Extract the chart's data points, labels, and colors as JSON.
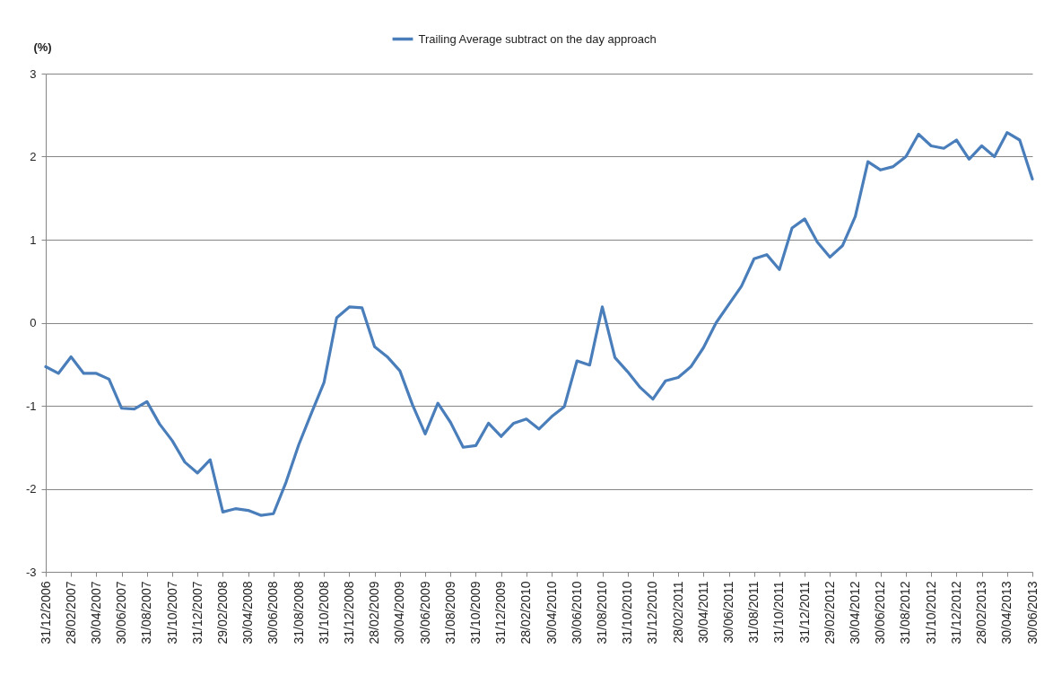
{
  "chart_data": {
    "type": "line",
    "ylabel": "(%)",
    "categories": [
      "31/12/2006",
      null,
      "28/02/2007",
      null,
      "30/04/2007",
      null,
      "30/06/2007",
      null,
      "31/08/2007",
      null,
      "31/10/2007",
      null,
      "31/12/2007",
      null,
      "29/02/2008",
      null,
      "30/04/2008",
      null,
      "30/06/2008",
      null,
      "31/08/2008",
      null,
      "31/10/2008",
      null,
      "31/12/2008",
      null,
      "28/02/2009",
      null,
      "30/04/2009",
      null,
      "30/06/2009",
      null,
      "31/08/2009",
      null,
      "31/10/2009",
      null,
      "31/12/2009",
      null,
      "28/02/2010",
      null,
      "30/04/2010",
      null,
      "30/06/2010",
      null,
      "31/08/2010",
      null,
      "31/10/2010",
      null,
      "31/12/2010",
      null,
      "28/02/2011",
      null,
      "30/04/2011",
      null,
      "30/06/2011",
      null,
      "31/08/2011",
      null,
      "31/10/2011",
      null,
      "31/12/2011",
      null,
      "29/02/2012",
      null,
      "30/04/2012",
      null,
      "30/06/2012",
      null,
      "31/08/2012",
      null,
      "31/10/2012",
      null,
      "31/12/2012",
      null,
      "28/02/2013",
      null,
      "30/04/2013",
      null,
      "30/06/2013"
    ],
    "series": [
      {
        "name": "Trailing Average subtract on the day approach",
        "color": "#4a7ebb",
        "values": [
          -0.53,
          -0.61,
          -0.41,
          -0.61,
          -0.61,
          -0.68,
          -1.03,
          -1.04,
          -0.95,
          -1.22,
          -1.42,
          -1.68,
          -1.81,
          -1.65,
          -2.28,
          -2.24,
          -2.26,
          -2.32,
          -2.3,
          -1.92,
          -1.47,
          -1.09,
          -0.72,
          0.06,
          0.19,
          0.18,
          -0.29,
          -0.41,
          -0.58,
          -0.99,
          -1.34,
          -0.97,
          -1.2,
          -1.5,
          -1.48,
          -1.21,
          -1.37,
          -1.21,
          -1.16,
          -1.28,
          -1.13,
          -1.01,
          -0.46,
          -0.51,
          0.19,
          -0.42,
          -0.59,
          -0.78,
          -0.92,
          -0.7,
          -0.66,
          -0.53,
          -0.3,
          0.0,
          0.22,
          0.44,
          0.77,
          0.82,
          0.64,
          1.14,
          1.25,
          0.97,
          0.79,
          0.93,
          1.28,
          1.94,
          1.84,
          1.88,
          2.0,
          2.27,
          2.13,
          2.1,
          2.2,
          1.97,
          2.13,
          2.0,
          2.29,
          2.2,
          1.73
        ]
      }
    ],
    "ylim": [
      -3,
      3
    ],
    "yticks": [
      -3,
      -2,
      -1,
      0,
      1,
      2,
      3
    ],
    "grid": "y",
    "legend": "top"
  }
}
